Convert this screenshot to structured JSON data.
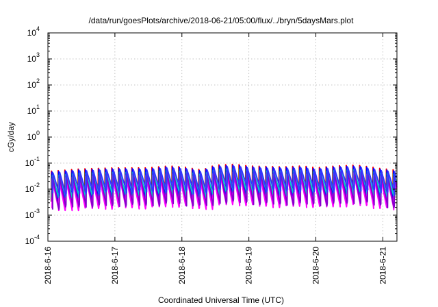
{
  "chart_data": {
    "type": "line",
    "title": "/data/run/goesPlots/archive/2018-06-21/05:00/flux/../bryn/5daysMars.plot",
    "xlabel": "Coordinated Universal Time (UTC)",
    "ylabel": "cGy/day",
    "yscale": "log",
    "ylim": [
      0.0001,
      10000
    ],
    "xlim": [
      "2018-06-16 00:00",
      "2018-06-21 05:00"
    ],
    "grid": true,
    "x_ticks": [
      "2018-6-16",
      "2018-6-17",
      "2018-6-18",
      "2018-6-19",
      "2018-6-20",
      "2018-6-21"
    ],
    "y_ticks": [
      {
        "base": "10",
        "exp": "-4",
        "value": 0.0001
      },
      {
        "base": "10",
        "exp": "-3",
        "value": 0.001
      },
      {
        "base": "10",
        "exp": "-2",
        "value": 0.01
      },
      {
        "base": "10",
        "exp": "-1",
        "value": 0.1
      },
      {
        "base": "10",
        "exp": "0",
        "value": 1
      },
      {
        "base": "10",
        "exp": "1",
        "value": 10
      },
      {
        "base": "10",
        "exp": "2",
        "value": 100
      },
      {
        "base": "10",
        "exp": "3",
        "value": 1000
      },
      {
        "base": "10",
        "exp": "4",
        "value": 10000
      }
    ],
    "cycle": {
      "start_x": 0.05,
      "period_days": 0.1,
      "count": 52,
      "note_pattern": "each cycle jumps from a low value to a peak and decays"
    },
    "series": [
      {
        "color": "#ff0000",
        "peak_base": 0.06,
        "trough_base": 0.005
      },
      {
        "color": "#00bb00",
        "peak_base": 0.045,
        "trough_base": 0.004
      },
      {
        "color": "#0000ff",
        "peak_base": 0.055,
        "trough_base": 0.0045
      },
      {
        "color": "#ff00ff",
        "peak_base": 0.03,
        "trough_base": 0.002
      },
      {
        "color": "#00cccc",
        "peak_base": 0.04,
        "trough_base": 0.006
      },
      {
        "color": "#8800cc",
        "peak_base": 0.035,
        "trough_base": 0.0025
      },
      {
        "color": "#3333ff",
        "peak_base": 0.05,
        "trough_base": 0.008
      }
    ],
    "envelope": {
      "x": [
        0.0,
        0.5,
        1.0,
        1.5,
        1.8,
        2.0,
        2.3,
        2.5,
        2.8,
        3.0,
        3.5,
        3.8,
        4.0,
        4.3,
        4.6,
        5.0,
        5.21
      ],
      "factor": [
        0.8,
        1.0,
        1.1,
        1.1,
        1.3,
        1.2,
        0.9,
        1.4,
        1.5,
        1.3,
        1.2,
        1.3,
        1.1,
        1.3,
        1.4,
        1.0,
        0.9
      ]
    }
  }
}
